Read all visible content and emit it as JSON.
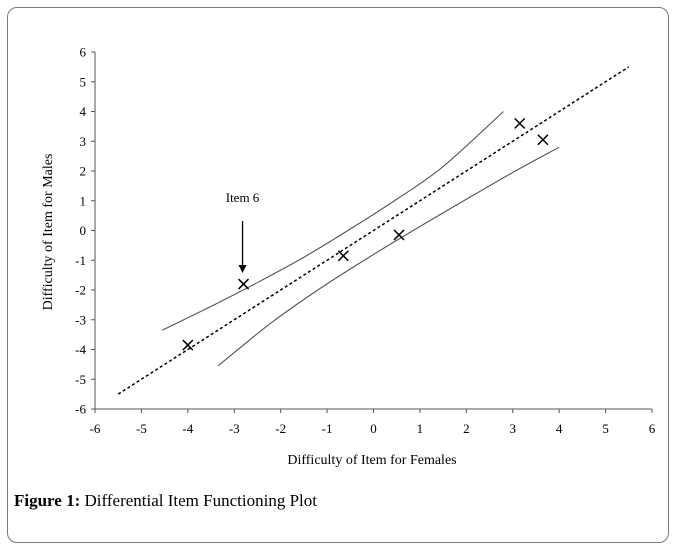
{
  "chart_data": {
    "type": "scatter",
    "xlabel": "Difficulty of Item for Females",
    "ylabel": "Difficulty of Item for Males",
    "xlim": [
      -6,
      6
    ],
    "ylim": [
      -6,
      6
    ],
    "xticks": [
      -6,
      -5,
      -4,
      -3,
      -2,
      -1,
      0,
      1,
      2,
      3,
      4,
      5,
      6
    ],
    "yticks": [
      -6,
      -5,
      -4,
      -3,
      -2,
      -1,
      0,
      1,
      2,
      3,
      4,
      5,
      6
    ],
    "grid": false,
    "points": [
      {
        "x": -4.0,
        "y": -3.85
      },
      {
        "x": -2.8,
        "y": -1.8
      },
      {
        "x": -0.65,
        "y": -0.85
      },
      {
        "x": 0.55,
        "y": -0.15
      },
      {
        "x": 3.15,
        "y": 3.6
      },
      {
        "x": 3.65,
        "y": 3.05
      }
    ],
    "identity_line": {
      "x": [
        -5.5,
        5.5
      ],
      "y": [
        -5.5,
        5.5
      ],
      "style": "dashed"
    },
    "upper_band": {
      "x": [
        -4.55,
        -3.5,
        -2.5,
        -1.5,
        -0.5,
        0.5,
        1.5,
        2.8
      ],
      "y": [
        -3.35,
        -2.55,
        -1.75,
        -0.9,
        0.05,
        1.05,
        2.15,
        4.0
      ]
    },
    "lower_band": {
      "x": [
        -3.35,
        -2.2,
        -1.2,
        -0.2,
        0.8,
        2.0,
        3.0,
        4.0
      ],
      "y": [
        -4.55,
        -3.1,
        -2.0,
        -1.0,
        -0.05,
        1.05,
        1.95,
        2.8
      ]
    },
    "annotation": {
      "text": "Item 6",
      "x": -2.8,
      "y": -1.8
    }
  },
  "caption": {
    "label": "Figure 1:",
    "text": " Differential Item Functioning Plot"
  }
}
